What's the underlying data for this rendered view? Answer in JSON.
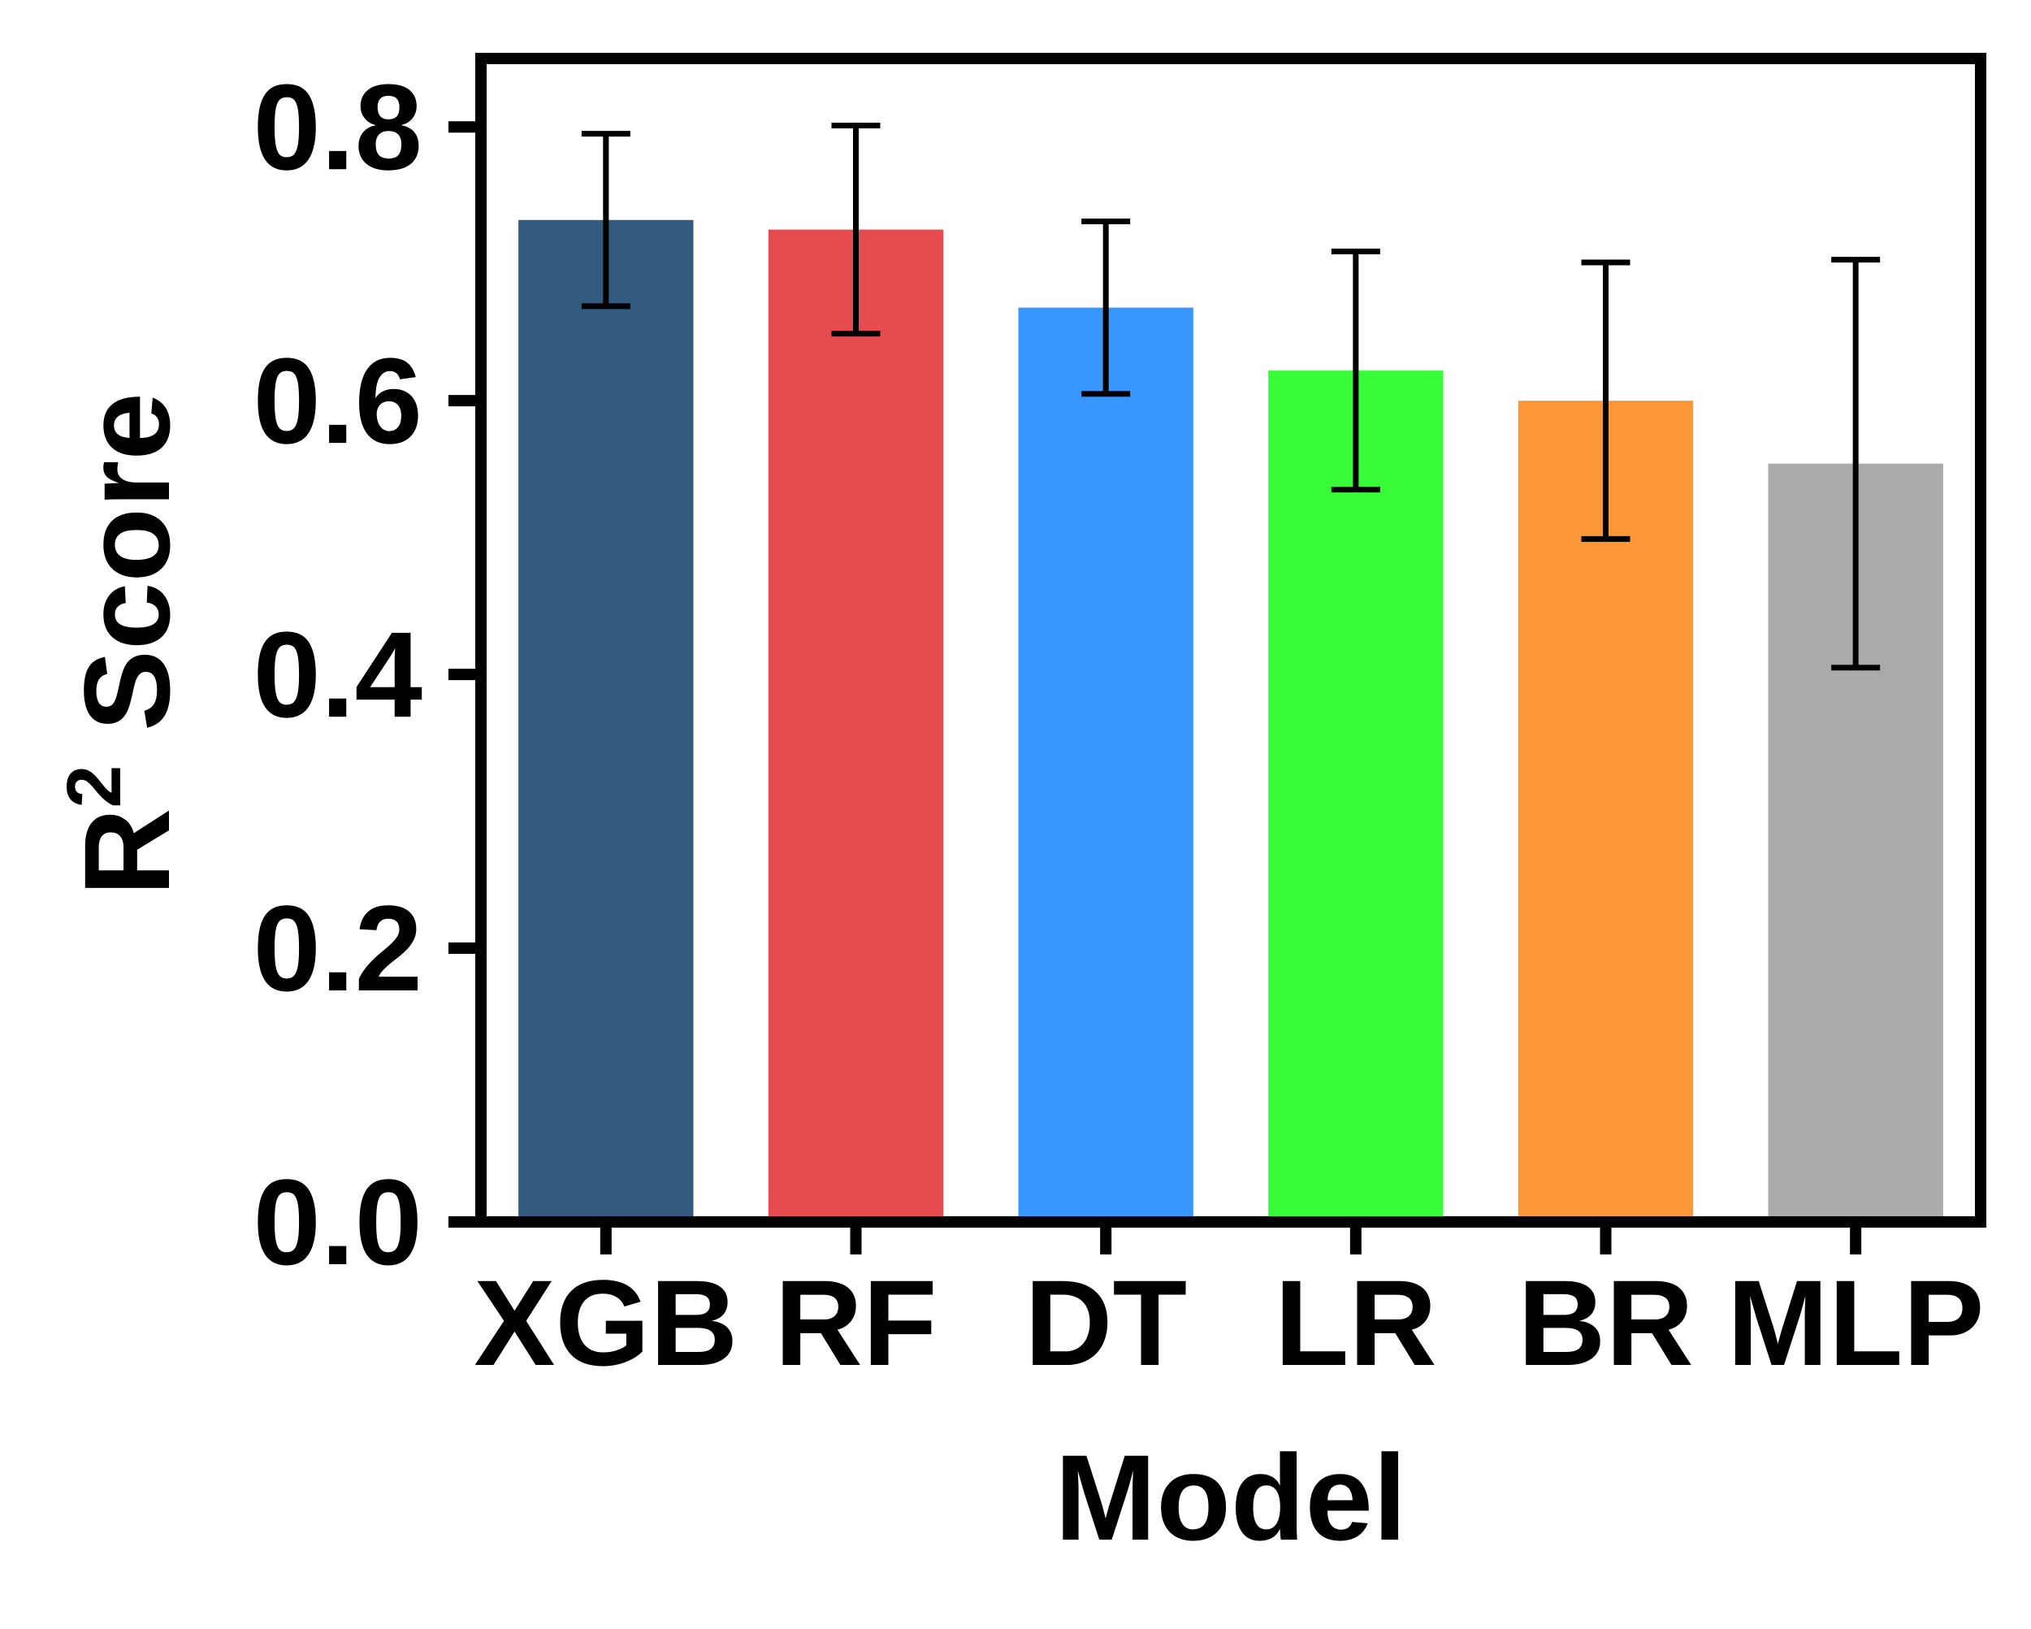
{
  "chart_data": {
    "type": "bar",
    "title": "",
    "xlabel": "Model",
    "ylabel": "R",
    "ylabel_superscript": "2",
    "ylabel_suffix": " Score",
    "categories": [
      "XGB",
      "RF",
      "DT",
      "LR",
      "BR",
      "MLP"
    ],
    "values": [
      0.732,
      0.725,
      0.668,
      0.622,
      0.6,
      0.554
    ],
    "errors": [
      0.063,
      0.076,
      0.063,
      0.087,
      0.101,
      0.149
    ],
    "colors": [
      "#335b80",
      "#e64b50",
      "#3797fc",
      "#38fc37",
      "#fc9737",
      "#aaaaaa"
    ],
    "ylim": [
      0.0,
      0.85
    ],
    "yticks": [
      0.0,
      0.2,
      0.4,
      0.6,
      0.8
    ],
    "ytick_labels": [
      "0.0",
      "0.2",
      "0.4",
      "0.6",
      "0.8"
    ],
    "grid": false,
    "legend": "none"
  }
}
